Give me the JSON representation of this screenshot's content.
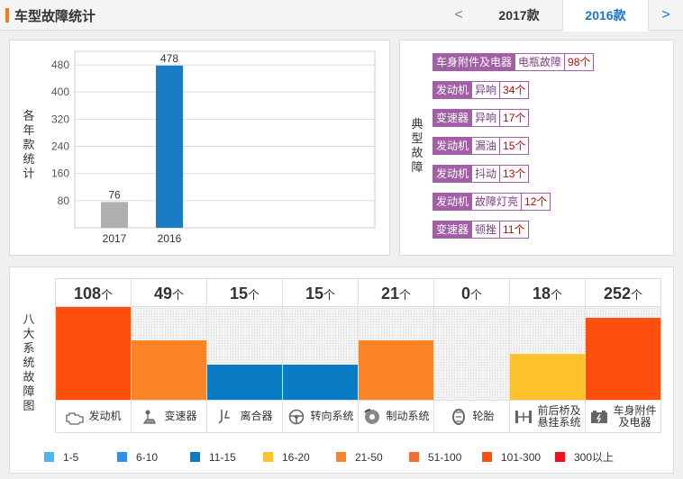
{
  "header": {
    "title": "车型故障统计",
    "prev_arrow": "<",
    "next_arrow": ">",
    "tabs": [
      {
        "label": "2017款",
        "active": false
      },
      {
        "label": "2016款",
        "active": true
      }
    ]
  },
  "year_chart": {
    "side_label": [
      "各",
      "年",
      "款",
      "统",
      "计"
    ],
    "chart_data": {
      "type": "bar",
      "categories": [
        "2017",
        "2016"
      ],
      "values": [
        76,
        478
      ],
      "data_labels": [
        "76",
        "478"
      ],
      "colors": [
        "#b0b0b0",
        "#1a7cc4"
      ],
      "yticks": [
        80,
        160,
        240,
        320,
        400,
        480
      ],
      "ylim": [
        0,
        520
      ],
      "grid": true
    }
  },
  "typical_faults": {
    "side_label": [
      "典",
      "型",
      "故",
      "障"
    ],
    "items": [
      {
        "category": "车身附件及电器",
        "fault": "电瓶故障",
        "count": "98个"
      },
      {
        "category": "发动机",
        "fault": "异响",
        "count": "34个"
      },
      {
        "category": "变速器",
        "fault": "异响",
        "count": "17个"
      },
      {
        "category": "发动机",
        "fault": "漏油",
        "count": "15个"
      },
      {
        "category": "发动机",
        "fault": "抖动",
        "count": "13个"
      },
      {
        "category": "发动机",
        "fault": "故障灯亮",
        "count": "12个"
      },
      {
        "category": "变速器",
        "fault": "顿挫",
        "count": "11个"
      }
    ]
  },
  "eight_systems": {
    "side_label": [
      "八",
      "大",
      "系",
      "统",
      "故",
      "障",
      "图"
    ],
    "unit": "个",
    "systems": [
      {
        "name": "发动机",
        "count": 108,
        "level": 1.0,
        "color": "#ff4f0f",
        "icon": "engine-icon"
      },
      {
        "name": "变速器",
        "count": 49,
        "level": 0.64,
        "color": "#fb8526",
        "icon": "gearshift-icon"
      },
      {
        "name": "离合器",
        "count": 15,
        "level": 0.38,
        "color": "#0a7cc6",
        "icon": "clutch-icon"
      },
      {
        "name": "转向系统",
        "count": 15,
        "level": 0.38,
        "color": "#0a7cc6",
        "icon": "steering-wheel-icon"
      },
      {
        "name": "制动系统",
        "count": 21,
        "level": 0.64,
        "color": "#fb8526",
        "icon": "brake-disc-icon"
      },
      {
        "name": "轮胎",
        "count": 0,
        "level": 0,
        "color": "#ffffff",
        "icon": "tire-icon"
      },
      {
        "name": "前后桥及\n悬挂系统",
        "count": 18,
        "level": 0.5,
        "color": "#fec22c",
        "icon": "suspension-icon"
      },
      {
        "name": "车身附件\n及电器",
        "count": 252,
        "level": 0.88,
        "color": "#ff4f0f",
        "icon": "battery-icon"
      }
    ]
  },
  "legend": [
    {
      "label": "1-5",
      "color": "#4ab6f3"
    },
    {
      "label": "6-10",
      "color": "#2f92e8"
    },
    {
      "label": "11-15",
      "color": "#0a7cc6"
    },
    {
      "label": "16-20",
      "color": "#fec22c"
    },
    {
      "label": "21-50",
      "color": "#fb8526"
    },
    {
      "label": "51-100",
      "color": "#f26d34"
    },
    {
      "label": "101-300",
      "color": "#ff4f0f"
    },
    {
      "label": "300以上",
      "color": "#f0131e"
    }
  ]
}
